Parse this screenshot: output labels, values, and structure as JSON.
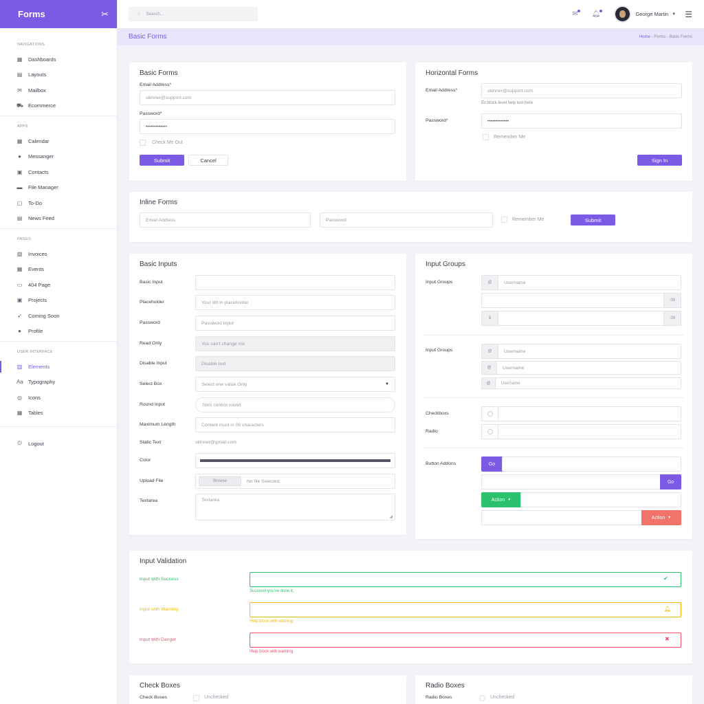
{
  "brand": {
    "title": "Forms"
  },
  "sidebar": {
    "sections": [
      {
        "title": "NAVIGATIONS",
        "items": [
          {
            "label": "Dashboards",
            "icon": "dashboard-icon"
          },
          {
            "label": "Layouts",
            "icon": "layout-icon"
          },
          {
            "label": "Mailbox",
            "icon": "mail-icon"
          },
          {
            "label": "Ecommerce",
            "icon": "cart-icon"
          }
        ]
      },
      {
        "title": "APPS",
        "items": [
          {
            "label": "Calendar",
            "icon": "calendar-icon"
          },
          {
            "label": "Messanger",
            "icon": "chat-icon"
          },
          {
            "label": "Contacts",
            "icon": "contacts-icon"
          },
          {
            "label": "File Manager",
            "icon": "folder-icon"
          },
          {
            "label": "To-Do",
            "icon": "todo-icon"
          },
          {
            "label": "News Feed",
            "icon": "news-icon"
          }
        ]
      },
      {
        "title": "PAGES",
        "items": [
          {
            "label": "Invoices",
            "icon": "invoice-icon"
          },
          {
            "label": "Events",
            "icon": "events-icon"
          },
          {
            "label": "404 Page",
            "icon": "error-icon"
          },
          {
            "label": "Projects",
            "icon": "projects-icon"
          },
          {
            "label": "Coming Soon",
            "icon": "rocket-icon"
          },
          {
            "label": "Profile",
            "icon": "user-icon"
          }
        ]
      },
      {
        "title": "USER INTERFACE",
        "items": [
          {
            "label": "Elements",
            "icon": "elements-icon"
          },
          {
            "label": "Typography",
            "icon": "typography-icon"
          },
          {
            "label": "Icons",
            "icon": "icons-icon"
          },
          {
            "label": "Tables",
            "icon": "table-icon"
          }
        ]
      }
    ],
    "logout": "Logout"
  },
  "topbar": {
    "search_placeholder": "Search...",
    "user_name": "George Martin"
  },
  "page": {
    "title": "Basic Forms",
    "breadcrumb": {
      "home": "Home",
      "sep": "-",
      "mid": "Forms",
      "current": "Basic Forms"
    }
  },
  "basic_forms": {
    "title": "Basic Forms",
    "email_label": "Email Address*",
    "email_value": "skinner@support.com",
    "password_label": "Password*",
    "password_value": "•••••••••••••",
    "check_label": "Check Me Out",
    "submit": "Submit",
    "cancel": "Cancel"
  },
  "horizontal_forms": {
    "title": "Horizontal Forms",
    "email_label": "Email Address*",
    "email_value": "skinner@support.com",
    "help": "Ex:block-level help text here",
    "password_label": "Password*",
    "password_value": "•••••••••••••",
    "remember": "Remember Me",
    "signin": "Sign In"
  },
  "inline_forms": {
    "title": "Inline Forms",
    "email_placeholder": "Email Address",
    "password_placeholder": "Password",
    "remember": "Remember Me",
    "submit": "Submit"
  },
  "basic_inputs": {
    "title": "Basic Inputs",
    "rows": [
      {
        "label": "Basic Input",
        "value": ""
      },
      {
        "label": "Placeholder",
        "value": "Your titlt in placeholder"
      },
      {
        "label": "Password",
        "value": "Password Input"
      },
      {
        "label": "Read Only",
        "value": "You can't change me"
      },
      {
        "label": "Disable Input",
        "value": "Disable text"
      },
      {
        "label": "Select Box",
        "value": "Select one value Only"
      },
      {
        "label": "Round Input",
        "value": ".form control round"
      },
      {
        "label": "Maximum Length",
        "value": "Content must in 06 characters"
      },
      {
        "label": "Static Text",
        "value": "skinner@gmail.com"
      },
      {
        "label": "Color",
        "value": ""
      },
      {
        "label": "Upload File",
        "value": "No file Selected.",
        "button": "Browse"
      },
      {
        "label": "Textarea",
        "value": "Textarea"
      }
    ]
  },
  "input_groups": {
    "title": "Input Groups",
    "group1_label": "Input Groups",
    "group2_label": "Input Groups",
    "username": "Username",
    "addon_at": "@",
    "addon_dollar": "$",
    "addon_cents": ".00",
    "checkbox_label": "Checkboxs",
    "radio_label": "Radio",
    "button_addons_label": "Button Addons",
    "go": "Go",
    "action": "Action"
  },
  "validation": {
    "title": "Input Validation",
    "success_label": "Input with Success",
    "success_help": "Success! you've done it.",
    "warning_label": "Input with Warning",
    "warning_help": "Help block with warning",
    "danger_label": "Input with Danger",
    "danger_help": "Help block with warning",
    "colors": {
      "success": "#2bc16d",
      "warning": "#f5b800",
      "danger": "#f0506e"
    }
  },
  "check_boxes": {
    "title": "Check Boxes",
    "label": "Check Boxes",
    "unchecked": "Unchecked"
  },
  "radio_boxes": {
    "title": "Radio Boxes",
    "label": "Radio Boxes",
    "unchecked": "Unchecked"
  }
}
